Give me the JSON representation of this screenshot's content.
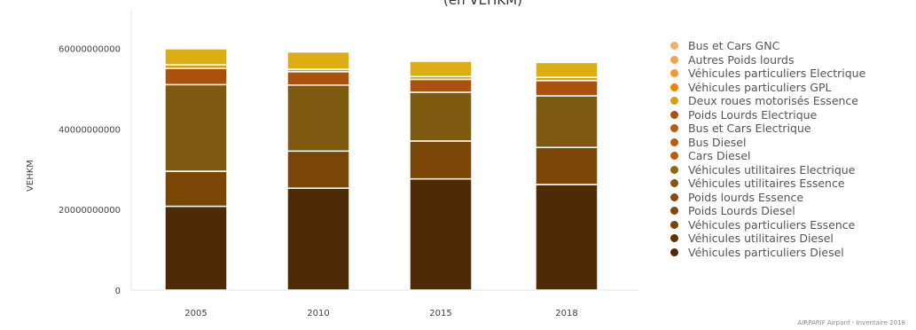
{
  "chart_data": {
    "type": "bar",
    "stacked": true,
    "title": "(en VEHKM)",
    "ylabel": "VEHKM",
    "xlabel": "",
    "ylim": [
      0,
      72000000000
    ],
    "yticks": [
      0,
      20000000000,
      40000000000,
      60000000000
    ],
    "ytick_labels": [
      "0",
      "20000000000",
      "40000000000",
      "60000000000"
    ],
    "categories": [
      "2005",
      "2010",
      "2015",
      "2018"
    ],
    "legend_position": "right",
    "series": [
      {
        "name": "Véhicules particuliers Diesel",
        "color": "#4f2a06",
        "values": [
          20800000000,
          25300000000,
          27600000000,
          26200000000
        ]
      },
      {
        "name": "Véhicules utilitaires Diesel",
        "color": "#5c3406",
        "values": [
          0,
          0,
          0,
          0
        ]
      },
      {
        "name": "Véhicules particuliers Essence",
        "color": "#7a4608",
        "values": [
          8700000000,
          9200000000,
          9400000000,
          9200000000
        ]
      },
      {
        "name": "Poids Lourds Diesel",
        "color": "#83480b",
        "values": [
          0,
          0,
          0,
          0
        ]
      },
      {
        "name": "Poids lourds Essence",
        "color": "#8a4a0d",
        "values": [
          0,
          0,
          0,
          0
        ]
      },
      {
        "name": "Véhicules utilitaires Essence",
        "color": "#7d5a0f",
        "values": [
          21500000000,
          16400000000,
          12100000000,
          12800000000
        ]
      },
      {
        "name": "Véhicules utilitaires Electrique",
        "color": "#8d6a12",
        "values": [
          0,
          0,
          0,
          0
        ]
      },
      {
        "name": "Cars Diesel",
        "color": "#b95c10",
        "values": [
          0,
          0,
          0,
          0
        ]
      },
      {
        "name": "Bus Diesel",
        "color": "#b85e10",
        "values": [
          0,
          0,
          0,
          0
        ]
      },
      {
        "name": "Bus et Cars Electrique",
        "color": "#b85c10",
        "values": [
          0,
          0,
          0,
          0
        ]
      },
      {
        "name": "Poids Lourds Electrique",
        "color": "#a9510d",
        "values": [
          4000000000,
          3300000000,
          3200000000,
          3800000000
        ]
      },
      {
        "name": "Deux roues motorisés Essence",
        "color": "#d4a20f",
        "values": [
          900000000,
          600000000,
          700000000,
          800000000
        ]
      },
      {
        "name": "Véhicules particuliers GPL",
        "color": "#ee820a",
        "values": [
          0,
          0,
          0,
          0
        ]
      },
      {
        "name": "Véhicules particuliers Electrique",
        "color": "#f19a2a",
        "values": [
          0,
          0,
          0,
          0
        ]
      },
      {
        "name": "Autres Poids lourds",
        "color": "#f5a34a",
        "values": [
          0,
          0,
          0,
          0
        ]
      },
      {
        "name": "Bus et Cars GNC",
        "color": "#f5b06a",
        "values": [
          0,
          0,
          0,
          0
        ]
      }
    ],
    "top_segment": {
      "color": "#dcae14",
      "values": [
        4000000000,
        4300000000,
        3800000000,
        3700000000
      ]
    }
  },
  "credits": "AIRPARIF Airparif - Inventaire 2018"
}
